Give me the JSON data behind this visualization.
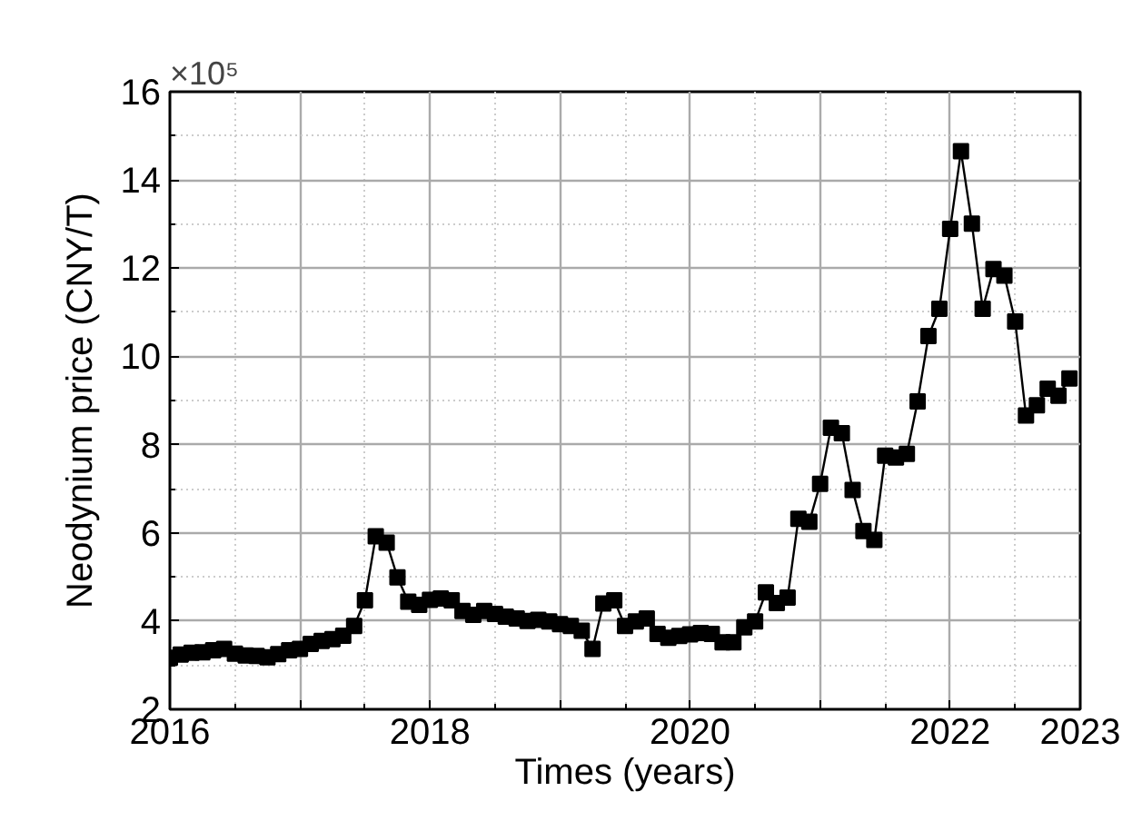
{
  "chart_data": {
    "type": "line",
    "xlabel": "Times (years)",
    "ylabel": "Neodynium price (CNY/T)",
    "annotations": [
      "×10⁵"
    ],
    "x": [
      2016.0,
      2016.083,
      2016.167,
      2016.25,
      2016.333,
      2016.417,
      2016.5,
      2016.583,
      2016.667,
      2016.75,
      2016.833,
      2016.917,
      2017.0,
      2017.083,
      2017.167,
      2017.25,
      2017.333,
      2017.417,
      2017.5,
      2017.583,
      2017.667,
      2017.75,
      2017.833,
      2017.917,
      2018.0,
      2018.083,
      2018.167,
      2018.25,
      2018.333,
      2018.417,
      2018.5,
      2018.583,
      2018.667,
      2018.75,
      2018.833,
      2018.917,
      2019.0,
      2019.083,
      2019.167,
      2019.25,
      2019.333,
      2019.417,
      2019.5,
      2019.583,
      2019.667,
      2019.75,
      2019.833,
      2019.917,
      2020.0,
      2020.083,
      2020.167,
      2020.25,
      2020.333,
      2020.417,
      2020.5,
      2020.583,
      2020.667,
      2020.75,
      2020.833,
      2020.917,
      2021.0,
      2021.083,
      2021.167,
      2021.25,
      2021.333,
      2021.417,
      2021.5,
      2021.583,
      2021.667,
      2021.75,
      2021.833,
      2021.917,
      2022.0,
      2022.083,
      2022.167,
      2022.25,
      2022.333,
      2022.417,
      2022.5,
      2022.583,
      2022.667,
      2022.75,
      2022.833,
      2022.917
    ],
    "series": [
      {
        "color": "#000000",
        "values": [
          3.17,
          3.24,
          3.28,
          3.29,
          3.34,
          3.37,
          3.26,
          3.22,
          3.21,
          3.18,
          3.25,
          3.34,
          3.37,
          3.48,
          3.55,
          3.59,
          3.67,
          3.89,
          4.47,
          5.92,
          5.78,
          4.99,
          4.44,
          4.37,
          4.48,
          4.51,
          4.47,
          4.23,
          4.14,
          4.23,
          4.16,
          4.1,
          4.06,
          4.0,
          4.03,
          3.99,
          3.93,
          3.89,
          3.78,
          3.37,
          4.4,
          4.47,
          3.89,
          3.99,
          4.06,
          3.71,
          3.62,
          3.66,
          3.7,
          3.73,
          3.71,
          3.52,
          3.52,
          3.86,
          3.99,
          4.65,
          4.41,
          4.53,
          6.32,
          6.25,
          7.11,
          8.38,
          8.26,
          6.97,
          6.04,
          5.84,
          7.75,
          7.71,
          7.79,
          8.98,
          10.46,
          11.08,
          12.89,
          14.65,
          13.01,
          11.08,
          11.98,
          11.83,
          10.79,
          8.66,
          8.89,
          9.27,
          9.11,
          9.5
        ]
      }
    ],
    "xlim": [
      2016,
      2023
    ],
    "xticks": [
      2016,
      {
        "value": 2017,
        "label": null
      },
      2018,
      {
        "value": 2019,
        "label": null
      },
      2020,
      {
        "value": 2021,
        "label": null
      },
      2022,
      2023
    ],
    "ylim": [
      2,
      16
    ],
    "yticks": [
      2,
      4,
      6,
      8,
      10,
      12,
      14,
      16
    ],
    "grid": true,
    "marker": "square",
    "line_style": "solid"
  }
}
